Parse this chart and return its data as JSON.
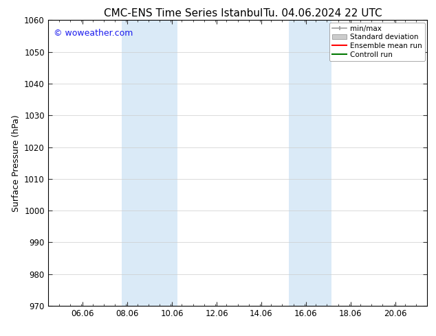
{
  "title_left": "CMC-ENS Time Series Istanbul",
  "title_right": "Tu. 04.06.2024 22 UTC",
  "ylabel": "Surface Pressure (hPa)",
  "ylim": [
    970,
    1060
  ],
  "yticks": [
    970,
    980,
    990,
    1000,
    1010,
    1020,
    1030,
    1040,
    1050,
    1060
  ],
  "xlim_start": 4.5,
  "xlim_end": 21.5,
  "xticks": [
    6.06,
    8.06,
    10.06,
    12.06,
    14.06,
    16.06,
    18.06,
    20.06
  ],
  "xtick_labels": [
    "06.06",
    "08.06",
    "10.06",
    "12.06",
    "14.06",
    "16.06",
    "18.06",
    "20.06"
  ],
  "shaded_bands": [
    {
      "x_start": 7.8,
      "x_end": 10.3,
      "color": "#daeaf7"
    },
    {
      "x_start": 15.3,
      "x_end": 17.2,
      "color": "#daeaf7"
    }
  ],
  "watermark_text": "© woweather.com",
  "watermark_color": "#1a1aee",
  "background_color": "#ffffff",
  "plot_bg_color": "#ffffff",
  "legend_entries": [
    {
      "label": "min/max",
      "color": "#999999",
      "style": "line_with_caps"
    },
    {
      "label": "Standard deviation",
      "color": "#cccccc",
      "style": "filled_rect"
    },
    {
      "label": "Ensemble mean run",
      "color": "#ff0000",
      "style": "line"
    },
    {
      "label": "Controll run",
      "color": "#007700",
      "style": "line"
    }
  ],
  "title_fontsize": 11,
  "axis_label_fontsize": 9,
  "tick_fontsize": 8.5,
  "legend_fontsize": 7.5,
  "watermark_fontsize": 9
}
